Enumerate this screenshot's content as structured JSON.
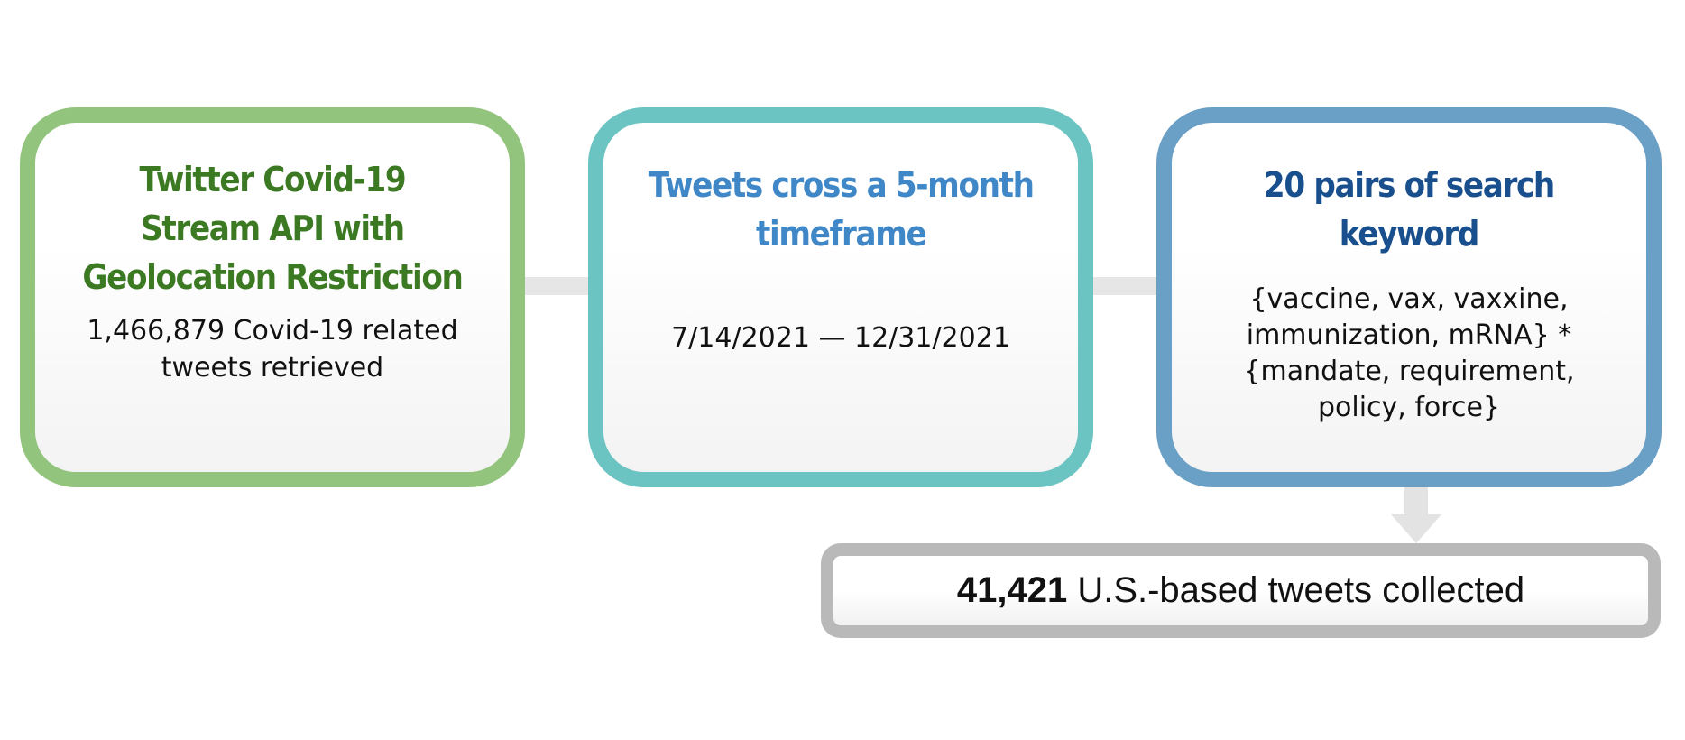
{
  "steps": [
    {
      "title": "Twitter Covid-19\nStream API with\nGeolocation Restriction",
      "body": "1,466,879 Covid-19 related\ntweets retrieved",
      "border_color": "#93c47d",
      "title_color": "#3b7a22"
    },
    {
      "title": "Tweets cross a 5-month\ntimeframe",
      "body": "7/14/2021 — 12/31/2021",
      "border_color": "#6cc4c2",
      "title_color": "#3f87c7"
    },
    {
      "title": "20 pairs of search\nkeyword",
      "body": "{vaccine, vax, vaxxine,\nimmunization, mRNA} *\n{mandate, requirement,\npolicy, force}",
      "border_color": "#6a9fc6",
      "title_color": "#184f8c"
    }
  ],
  "result": {
    "count": "41,421",
    "text": " U.S.-based tweets collected",
    "border_color": "#b9b9b9"
  },
  "connector_color": "#e6e6e6"
}
